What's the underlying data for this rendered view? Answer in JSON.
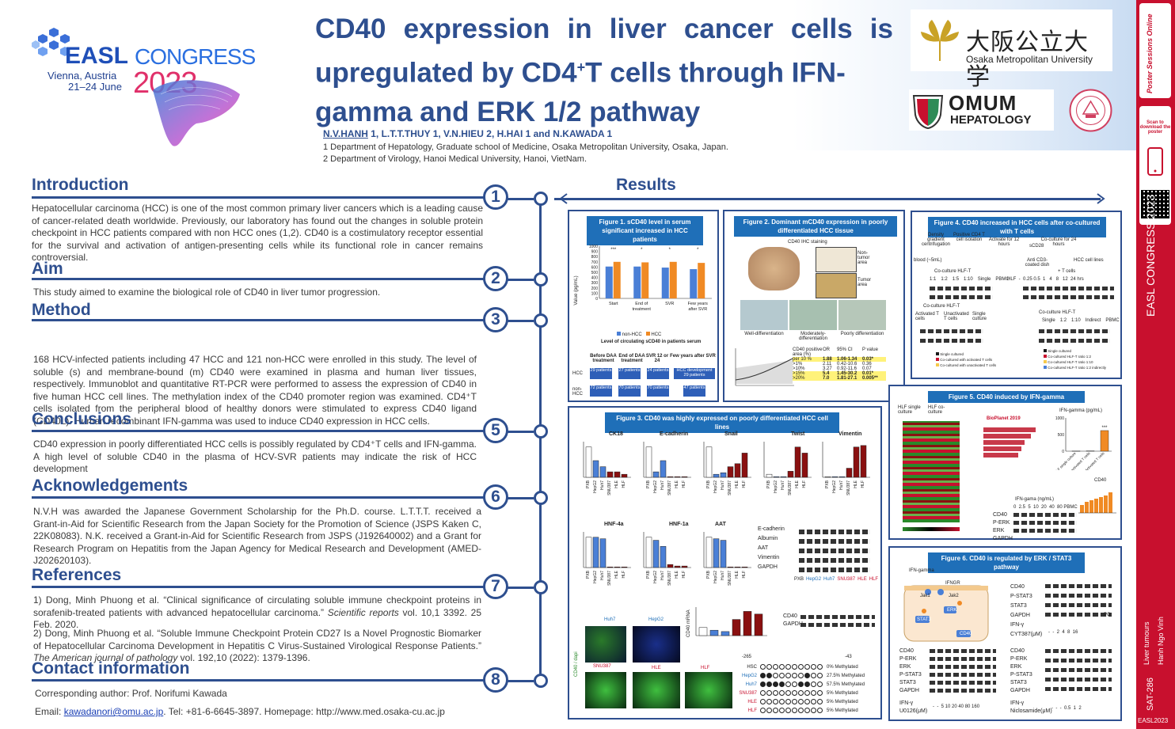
{
  "header": {
    "easl_name": "EASL",
    "easl_congress": "CONGRESS",
    "easl_location": "Vienna, Austria",
    "easl_dates": "21–24 June",
    "easl_year": "2023",
    "title_line1": "CD40 expression in liver cancer cells is",
    "title_line2_a": "upregulated by CD4",
    "title_line2_sup": "+",
    "title_line2_b": "T cells through IFN-",
    "title_line3": "gamma and ERK 1/2 pathway",
    "authors": {
      "first": "N.V.HANH",
      "rest": " 1, L.T.T.THUY 1, V.N.HIEU 2, H.HAI 1 and N.KAWADA 1"
    },
    "affiliation1": "1 Department of Hepatology, Graduate school of Medicine, Osaka Metropolitan University, Osaka, Japan.",
    "affiliation2": "2 Department of Virology, Hanoi Medical University, Hanoi, VietNam.",
    "univ_jp": "大阪公立大学",
    "univ_en": "Osaka Metropolitan University",
    "omum_top": "OMUM",
    "omum_bottom": "HEPATOLOGY"
  },
  "sections": {
    "intro_title": "Introduction",
    "intro_body": "Hepatocellular carcinoma (HCC) is one of the most common primary liver cancers which is a leading cause of cancer-related death worldwide. Previously, our laboratory has found out the changes in soluble protein checkpoint in HCC patients compared with non HCC ones (1,2). CD40 is a costimulatory receptor essential for the survival and activation of antigen-presenting cells while its functional role in cancer remains controversial.",
    "aim_title": "Aim",
    "aim_body": "This study aimed to examine the biological role of CD40 in liver tumor progression.",
    "method_title": "Method",
    "method_body": "168 HCV-infected patients including 47 HCC and 121 non-HCC were enrolled in this study. The level of soluble (s) and membrane-bound (m) CD40 were examined in plasma and human liver tissues, respectively. Immunoblot and quantitative RT-PCR were performed to assess the expression of CD40 in five human HCC cell lines. The methylation index of the CD40 promoter region was examined. CD4⁺T cells isolated from the peripheral blood of healthy donors were stimulated to express CD40 ligand (CD40L). Human recombinant IFN-gamma was used to induce CD40 expression in HCC cells.",
    "concl_title": "Conclusions",
    "concl_body": "CD40 expression in poorly differentiated HCC cells is possibly regulated by CD4⁺T cells and IFN-gamma. A high level of soluble CD40 in the plasma of HCV-SVR patients may indicate the risk of HCC development",
    "ack_title": "Acknowledgements",
    "ack_body": "N.V.H was awarded the Japanese Government Scholarship for the Ph.D. course. L.T.T.T. received a Grant-in-Aid for Scientific Research from the Japan Society for the Promotion of Science (JSPS Kaken C, 22K08083). N.K. received a Grant-in-Aid for Scientific Research from JSPS (J192640002) and a Grant for Research Program on Hepatitis from the Japan Agency for Medical Research and Development (AMED-J202620103).",
    "ref_title": "References",
    "ref1_a": "1) Dong, Minh Phuong et al. “Clinical significance of circulating soluble immune checkpoint proteins in sorafenib-treated patients with advanced hepatocellular carcinoma.” ",
    "ref1_journal": "Scientific reports",
    "ref1_b": " vol. 10,1 3392. 25 Feb. 2020.",
    "ref2_a": "2) Dong, Minh Phuong et al. “Soluble Immune Checkpoint Protein CD27 Is a Novel Prognostic Biomarker of Hepatocellular Carcinoma Development in Hepatitis C Virus-Sustained Virological Response Patients.” ",
    "ref2_journal": "The American journal of pathology",
    "ref2_b": " vol. 192,10 (2022): 1379-1396.",
    "contact_title": "Contact information",
    "contact_author": "Corresponding author: Prof. Norifumi Kawada",
    "contact_email_label": "Email: ",
    "contact_email": "kawadanori@omu.ac.jp",
    "contact_rest": ". Tel: +81-6-6645-3897. Homepage: http://www.med.osaka-cu.ac.jp",
    "results_title": "Results",
    "numbers": [
      "1",
      "2",
      "3",
      "4",
      "5",
      "6",
      "7",
      "8"
    ]
  },
  "figures": {
    "fig1_title": "Figure 1. sCD40 level in serum significant increased in HCC patients",
    "fig1_caption": "Level of circulating sCD40 in patients serum",
    "fig1_ylabel": "Value (pg/mL)",
    "fig1_legend_nonhcc": "non-HCC",
    "fig1_legend_hcc": "HCC",
    "fig1_table_headers": [
      "Before DAA treatment",
      "End of DAA treatment",
      "SVR 12 or 24",
      "Few years after SVR"
    ],
    "fig1_row_hcc": "HCC",
    "fig1_row_nonhcc": "non-HCC",
    "fig1_hcc_cells": [
      "29 patients",
      "27 patients",
      "24 patients",
      "HCC development 29 patients"
    ],
    "fig1_nonhcc_cells": [
      "72 patients",
      "70 patients",
      "70 patients",
      "47 patients"
    ],
    "fig2_title": "Figure 2. Dominant mCD40 expression in poorly differentiated HCC tissue",
    "fig2_stain": "CD40 IHC staining",
    "fig2_nontumor": "Non-tumor area",
    "fig2_tumor": "Tumor area",
    "fig2_diffs": [
      "Well-differentiation",
      "Moderately-differentiation",
      "Poorly differentiation"
    ],
    "fig2_table_headers": [
      "CD40 positive area (%)",
      "OR",
      "95% CI",
      "P value"
    ],
    "fig2_table_rows": [
      [
        "per 10 %",
        "1.88",
        "1.06-1.34",
        "0.03*"
      ],
      [
        ">1%",
        "2.11",
        "0.42-10.6",
        "0.36"
      ],
      [
        ">10%",
        "3.27",
        "0.92-11.6",
        "0.07"
      ],
      [
        ">15%",
        "5.4",
        "1.45-30.2",
        "0.01*"
      ],
      [
        ">20%",
        "7.0",
        "1.81-27.1",
        "0.005**"
      ]
    ],
    "fig3_title": "Figure 3. CD40 was highly expressed on poorly differentiated HCC cell lines",
    "fig3_genes_row1": [
      "CK18",
      "E-cadherin",
      "Snail",
      "Twist",
      "Vimentin"
    ],
    "fig3_genes_row2": [
      "HNF-4a",
      "HNF-1a",
      "AAT"
    ],
    "fig3_blot_labels": [
      "E-cadherin",
      "Albumin",
      "AAT",
      "Vimentin",
      "GAPDH"
    ],
    "fig3_cell_lines": [
      "PXB",
      "HepG2",
      "Huh7",
      "SNU387",
      "HLE",
      "HLF",
      "HSC"
    ],
    "fig3_if_labels": [
      "Huh7",
      "HepG2",
      "SNU387",
      "HLE",
      "HLF"
    ],
    "fig3_if_axis": "CD40 / dapi",
    "fig3_meth": [
      [
        "HSC",
        "0% Methylated"
      ],
      [
        "HepG2",
        "27.5% Methylated"
      ],
      [
        "Huh7",
        "57.5% Methylated"
      ],
      [
        "SNU387",
        "5% Methylated"
      ],
      [
        "HLE",
        "5% Methylated"
      ],
      [
        "HLF",
        "5% Methylated"
      ]
    ],
    "fig3_meth_left": "-265",
    "fig3_meth_right": "-43",
    "fig3_cd40mrna": "CD40 mRNA",
    "fig4_title": "Figure 4. CD40 increased in HCC cells after co-cultured with T cells",
    "fig4_steps": [
      "Density gradient centrifugation",
      "Positive CD4 T cell isolation",
      "Activate for 12 hours",
      "Co-culture for 24 hours"
    ],
    "fig4_blood": "blood (~5mL)",
    "fig4_sCD28": "sCD28",
    "fig4_anti": "Anti CD3-coated dish",
    "fig4_hcc": "HCC cell lines",
    "fig4_coculture": "Co-culture HLF-T",
    "fig4_ratios": [
      "1:1",
      "1:2",
      "1:5",
      "1:10",
      "Single",
      "PBMC"
    ],
    "fig4_tcells": "+ T cells",
    "fig4_hlf_row": "HLF  -  0.25 0.5  1   4   8   12  24 hrs",
    "fig4_legend": [
      "Single cultured",
      "Co-cultured with activated T cells",
      "Co-cultured with unactivated T cells"
    ],
    "fig4_legend2": [
      "Single cultured",
      "Co-cultured HLF-T ratio 1:2",
      "Co-cultured HLF-T ratio 1:10",
      "Co-cultured HLF-T ratio 1:2 indirectly"
    ],
    "fig4_act": [
      "Activated T cells",
      "Unactivated T cells",
      "Single culture"
    ],
    "fig4_ind": [
      "Single",
      "1:2",
      "1:10",
      "Indirect",
      "PBMC"
    ],
    "fig5_title": "Figure 5. CD40 induced by IFN-gamma",
    "fig5_hlf_single": "HLF single culture",
    "fig5_hlf_co": "HLF co-culture",
    "fig5_bioplanet": "BioPlanet 2019",
    "fig5_ifn": "IFN-gamma (pg/mL)",
    "fig5_ifn_ng": "IFN-gama (ng/mL)",
    "fig5_doses": "0  2.5  5  10  20  40  80 PBMC",
    "fig5_blot": [
      "CD40",
      "P-ERK",
      "ERK",
      "GAPDH"
    ],
    "fig5_cd40": "CD40",
    "fig6_title": "Figure 6. CD40 is regulated by ERK / STAT3 pathway",
    "fig6_ifngamma": "IFN-gamma",
    "fig6_nodes": [
      "IFNGR",
      "Jak1",
      "Jak2",
      "ERK",
      "STAT3",
      "CD40"
    ],
    "fig6_blot1": [
      "CD40",
      "P-STAT3",
      "STAT3",
      "GAPDH",
      "IFN-γ",
      "CYT387(μM)"
    ],
    "fig6_blot1_doses": "-  -  2  4  8  16",
    "fig6_pc": "PC",
    "fig6_blot2": [
      "CD40",
      "P-ERK",
      "ERK",
      "P-STAT3",
      "STAT3",
      "GAPDH",
      "IFN-γ",
      "U0126(μM)"
    ],
    "fig6_blot2_doses": "-  -  5 10 20 40 80 160",
    "fig6_blot3": [
      "CD40",
      "P-ERK",
      "ERK",
      "P-STAT3",
      "STAT3",
      "GAPDH",
      "IFN-γ",
      "Niclosamide(μM)"
    ],
    "fig6_blot3_doses": "-  -  -  0.5  1  2"
  },
  "chart_data": [
    {
      "type": "bar",
      "title": "Level of circulating sCD40 in patients serum",
      "ylabel": "Value (pg/mL)",
      "ylim": [
        0,
        1000
      ],
      "yticks": [
        0,
        100,
        200,
        300,
        400,
        500,
        600,
        700,
        800,
        900,
        1000
      ],
      "categories": [
        "Start",
        "End of treatment",
        "SVR",
        "Few years after SVR"
      ],
      "series": [
        {
          "name": "non-HCC",
          "values": [
            610,
            610,
            590,
            560
          ]
        },
        {
          "name": "HCC",
          "values": [
            700,
            690,
            700,
            680
          ]
        }
      ],
      "significance": [
        "***",
        "*",
        "*",
        "*"
      ]
    },
    {
      "type": "bar",
      "title": "IFN-gamma (pg/mL)",
      "ylim": [
        0,
        1000
      ],
      "yticks": [
        0,
        500,
        1000
      ],
      "categories": [
        "HLF single culture",
        "Unactivated T cells",
        "Activated T cells"
      ],
      "values": [
        5,
        10,
        620
      ],
      "significance": "***"
    }
  ],
  "sidebar": {
    "scan_text": "Scan to download the poster",
    "congress": "EASL CONGRESS 2023",
    "topic": "Liver tumours",
    "author": "Hanh Ngo Vinh",
    "code": "SAT-286",
    "bottom": "EASL2023",
    "poster_brand": "Poster Sessions Online"
  },
  "colors": {
    "primary": "#2e4f8f",
    "fig_title_bg": "#1f6fb8",
    "sidebar": "#c8102e",
    "bar_nonhcc": "#4a7fd6",
    "bar_hcc": "#f08a24"
  }
}
